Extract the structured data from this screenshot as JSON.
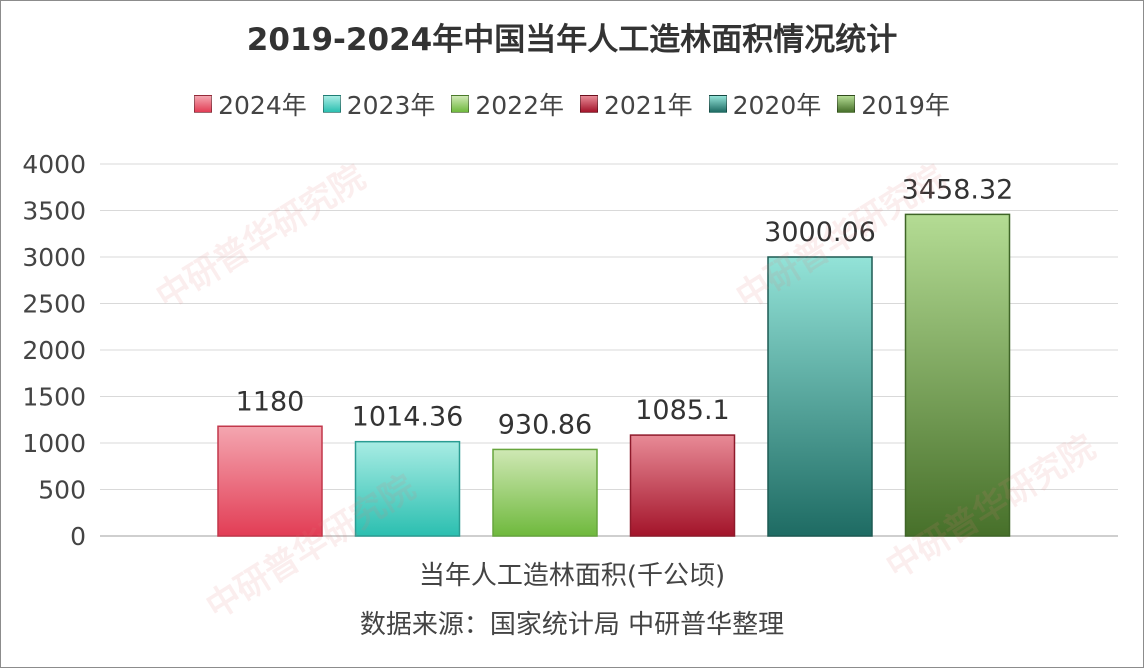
{
  "chart_data": {
    "type": "bar",
    "title": "2019-2024年中国当年人工造林面积情况统计",
    "xlabel": "当年人工造林面积(千公顷)",
    "source": "数据来源：国家统计局 中研普华整理",
    "ylim": [
      0,
      4000
    ],
    "yticks": [
      "0",
      "500",
      "1000",
      "1500",
      "2000",
      "2500",
      "3000",
      "3500",
      "4000"
    ],
    "yticks_values": [
      0,
      500,
      1000,
      1500,
      2000,
      2500,
      3000,
      3500,
      4000
    ],
    "grid": true,
    "legend_position": "top",
    "series": [
      {
        "name": "2024年",
        "value": 1180,
        "label": "1180",
        "color_top": "#f4a6b0",
        "color_bottom": "#e23d55",
        "border": "#c2374a"
      },
      {
        "name": "2023年",
        "value": 1014.36,
        "label": "1014.36",
        "color_top": "#a8ece4",
        "color_bottom": "#2bbfb0",
        "border": "#2a9c92"
      },
      {
        "name": "2022年",
        "value": 930.86,
        "label": "930.86",
        "color_top": "#cfe8b4",
        "color_bottom": "#6fb93d",
        "border": "#67a53d"
      },
      {
        "name": "2021年",
        "value": 1085.1,
        "label": "1085.1",
        "color_top": "#e88a96",
        "color_bottom": "#a3142a",
        "border": "#8e1a2b"
      },
      {
        "name": "2020年",
        "value": 3000.06,
        "label": "3000.06",
        "color_top": "#93e3d8",
        "color_bottom": "#1e6b63",
        "border": "#1d5a53"
      },
      {
        "name": "2019年",
        "value": 3458.32,
        "label": "3458.32",
        "color_top": "#b4dc94",
        "color_bottom": "#47702a",
        "border": "#3f6527"
      }
    ]
  },
  "watermark": {
    "text": "中研普华研究院"
  }
}
